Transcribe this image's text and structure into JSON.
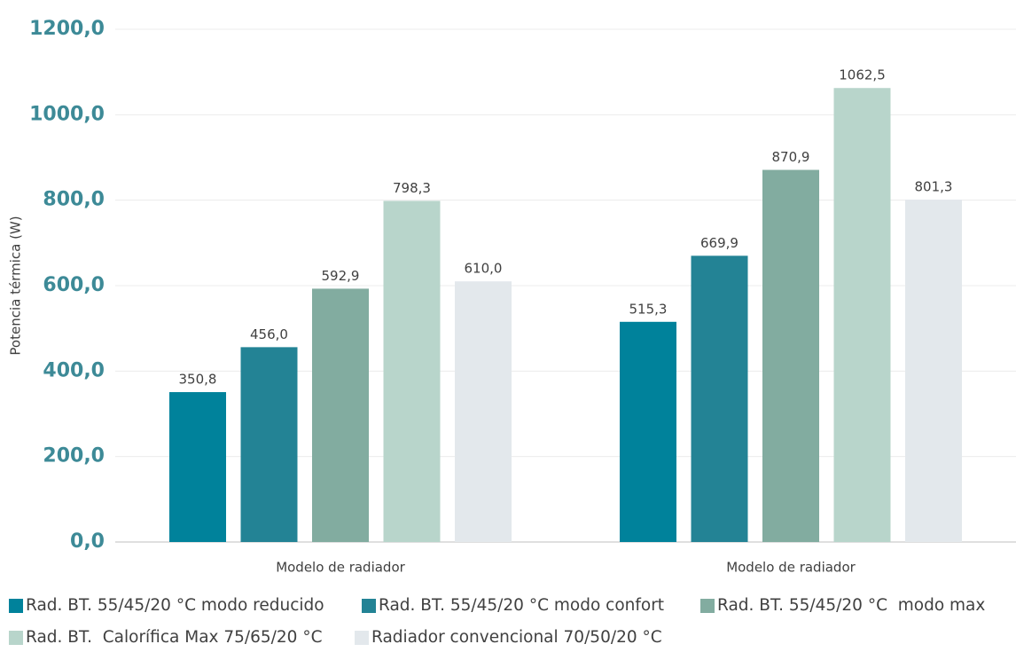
{
  "chart_data": {
    "type": "bar",
    "y_label": "Potencia térmica (W)",
    "categories": [
      "Modelo de radiador",
      "Modelo de radiador"
    ],
    "series": [
      {
        "name": "Rad. BT. 55/45/20 °C modo reducido",
        "color": "#00829b",
        "values": [
          350.8,
          515.3
        ],
        "value_labels": [
          "350,8",
          "515,3"
        ]
      },
      {
        "name": "Rad. BT. 55/45/20 °C modo confort",
        "color": "#238395",
        "values": [
          456.0,
          669.9
        ],
        "value_labels": [
          "456,0",
          "669,9"
        ]
      },
      {
        "name": "Rad. BT. 55/45/20 °C  modo max",
        "color": "#82aca0",
        "values": [
          592.9,
          870.9
        ],
        "value_labels": [
          "592,9",
          "870,9"
        ]
      },
      {
        "name": "Rad. BT.  Calorífica Max 75/65/20 °C",
        "color": "#b8d5cb",
        "values": [
          798.3,
          1062.5
        ],
        "value_labels": [
          "798,3",
          "1062,5"
        ]
      },
      {
        "name": "Radiador convencional 70/50/20 °C",
        "color": "#e3e8ec",
        "values": [
          610.0,
          801.3
        ],
        "value_labels": [
          "610,0",
          "801,3"
        ]
      }
    ],
    "ylim": [
      0,
      1200
    ],
    "yticks": [
      {
        "value": 0,
        "label": "0,0"
      },
      {
        "value": 200,
        "label": "200,0"
      },
      {
        "value": 400,
        "label": "400,0"
      },
      {
        "value": 600,
        "label": "600,0"
      },
      {
        "value": 800,
        "label": "800,0"
      },
      {
        "value": 1000,
        "label": "1000,0"
      },
      {
        "value": 1200,
        "label": "1200,0"
      }
    ],
    "grid": true,
    "legend": "bottom"
  }
}
